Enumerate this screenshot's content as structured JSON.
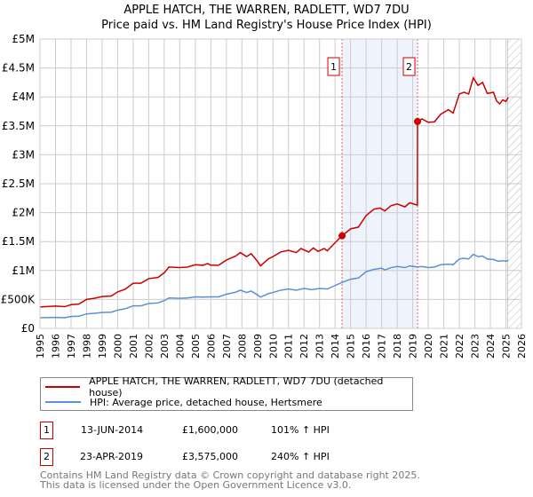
{
  "chart_data": {
    "type": "line",
    "title": "APPLE HATCH, THE WARREN, RADLETT, WD7 7DU",
    "subtitle": "Price paid vs. HM Land Registry's House Price Index (HPI)",
    "xlim": [
      1995,
      2026
    ],
    "ylim": [
      0,
      5000000
    ],
    "x_ticks": [
      "1995",
      "1996",
      "1997",
      "1998",
      "1999",
      "2000",
      "2001",
      "2002",
      "2003",
      "2004",
      "2005",
      "2006",
      "2007",
      "2008",
      "2009",
      "2010",
      "2011",
      "2012",
      "2013",
      "2014",
      "2015",
      "2016",
      "2017",
      "2018",
      "2019",
      "2020",
      "2021",
      "2022",
      "2023",
      "2024",
      "2025",
      "2026"
    ],
    "y_ticks": [
      {
        "v": 0,
        "label": "£0"
      },
      {
        "v": 500000,
        "label": "£500K"
      },
      {
        "v": 1000000,
        "label": "£1M"
      },
      {
        "v": 1500000,
        "label": "£1.5M"
      },
      {
        "v": 2000000,
        "label": "£2M"
      },
      {
        "v": 2500000,
        "label": "£2.5M"
      },
      {
        "v": 3000000,
        "label": "£3M"
      },
      {
        "v": 3500000,
        "label": "£3.5M"
      },
      {
        "v": 4000000,
        "label": "£4M"
      },
      {
        "v": 4500000,
        "label": "£4.5M"
      },
      {
        "v": 5000000,
        "label": "£5M"
      }
    ],
    "grid": true,
    "shaded_between_sales": [
      2014.45,
      2019.31
    ],
    "future_hatch_from": 2025.1,
    "series": [
      {
        "name": "APPLE HATCH, THE WARREN, RADLETT, WD7 7DU (detached house)",
        "color": "#cc0000",
        "points": [
          [
            1995,
            370000
          ],
          [
            1996,
            385000
          ],
          [
            1996.6,
            375000
          ],
          [
            1997,
            410000
          ],
          [
            1997.5,
            420000
          ],
          [
            1998,
            500000
          ],
          [
            1998.5,
            520000
          ],
          [
            1999,
            550000
          ],
          [
            1999.6,
            560000
          ],
          [
            2000,
            630000
          ],
          [
            2000.5,
            680000
          ],
          [
            2001,
            780000
          ],
          [
            2001.5,
            780000
          ],
          [
            2002,
            860000
          ],
          [
            2002.6,
            880000
          ],
          [
            2003,
            960000
          ],
          [
            2003.3,
            1060000
          ],
          [
            2004,
            1050000
          ],
          [
            2004.5,
            1060000
          ],
          [
            2005,
            1100000
          ],
          [
            2005.5,
            1090000
          ],
          [
            2005.8,
            1120000
          ],
          [
            2006,
            1090000
          ],
          [
            2006.5,
            1090000
          ],
          [
            2007,
            1180000
          ],
          [
            2007.6,
            1250000
          ],
          [
            2007.9,
            1310000
          ],
          [
            2008.3,
            1240000
          ],
          [
            2008.6,
            1290000
          ],
          [
            2009,
            1160000
          ],
          [
            2009.2,
            1080000
          ],
          [
            2009.7,
            1200000
          ],
          [
            2010,
            1240000
          ],
          [
            2010.5,
            1320000
          ],
          [
            2011,
            1350000
          ],
          [
            2011.5,
            1310000
          ],
          [
            2011.8,
            1380000
          ],
          [
            2012.3,
            1320000
          ],
          [
            2012.6,
            1390000
          ],
          [
            2012.9,
            1330000
          ],
          [
            2013.3,
            1380000
          ],
          [
            2013.5,
            1340000
          ],
          [
            2014,
            1480000
          ],
          [
            2014.45,
            1600000
          ],
          [
            2015,
            1720000
          ],
          [
            2015.5,
            1750000
          ],
          [
            2016,
            1950000
          ],
          [
            2016.5,
            2060000
          ],
          [
            2016.9,
            2080000
          ],
          [
            2017.2,
            2030000
          ],
          [
            2017.6,
            2120000
          ],
          [
            2018,
            2150000
          ],
          [
            2018.5,
            2100000
          ],
          [
            2018.8,
            2170000
          ],
          [
            2019.3,
            2130000
          ],
          [
            2019.31,
            3575000
          ],
          [
            2019.6,
            3620000
          ],
          [
            2020,
            3560000
          ],
          [
            2020.4,
            3570000
          ],
          [
            2020.8,
            3700000
          ],
          [
            2021.3,
            3780000
          ],
          [
            2021.6,
            3720000
          ],
          [
            2022,
            4050000
          ],
          [
            2022.3,
            4080000
          ],
          [
            2022.6,
            4050000
          ],
          [
            2022.9,
            4330000
          ],
          [
            2023.2,
            4200000
          ],
          [
            2023.5,
            4250000
          ],
          [
            2023.8,
            4060000
          ],
          [
            2024.2,
            4080000
          ],
          [
            2024.4,
            3930000
          ],
          [
            2024.6,
            3880000
          ],
          [
            2024.8,
            3950000
          ],
          [
            2025,
            3920000
          ],
          [
            2025.15,
            3990000
          ]
        ]
      },
      {
        "name": "HPI: Average price, detached house, Hertsmere",
        "color": "#5b8fd6",
        "points": [
          [
            1995,
            185000
          ],
          [
            1996,
            190000
          ],
          [
            1996.6,
            185000
          ],
          [
            1997,
            205000
          ],
          [
            1997.5,
            210000
          ],
          [
            1998,
            250000
          ],
          [
            1998.5,
            260000
          ],
          [
            1999,
            275000
          ],
          [
            1999.6,
            280000
          ],
          [
            2000,
            315000
          ],
          [
            2000.5,
            340000
          ],
          [
            2001,
            390000
          ],
          [
            2001.5,
            390000
          ],
          [
            2002,
            430000
          ],
          [
            2002.6,
            440000
          ],
          [
            2003,
            480000
          ],
          [
            2003.3,
            525000
          ],
          [
            2004,
            520000
          ],
          [
            2004.5,
            525000
          ],
          [
            2005,
            545000
          ],
          [
            2005.5,
            540000
          ],
          [
            2006,
            545000
          ],
          [
            2006.5,
            545000
          ],
          [
            2007,
            590000
          ],
          [
            2007.6,
            625000
          ],
          [
            2007.9,
            660000
          ],
          [
            2008.3,
            620000
          ],
          [
            2008.6,
            645000
          ],
          [
            2009,
            580000
          ],
          [
            2009.2,
            540000
          ],
          [
            2009.7,
            600000
          ],
          [
            2010,
            620000
          ],
          [
            2010.5,
            660000
          ],
          [
            2011,
            680000
          ],
          [
            2011.5,
            660000
          ],
          [
            2012,
            690000
          ],
          [
            2012.5,
            670000
          ],
          [
            2013,
            690000
          ],
          [
            2013.5,
            680000
          ],
          [
            2014,
            740000
          ],
          [
            2014.45,
            795000
          ],
          [
            2015,
            850000
          ],
          [
            2015.5,
            870000
          ],
          [
            2016,
            980000
          ],
          [
            2016.5,
            1020000
          ],
          [
            2017,
            1040000
          ],
          [
            2017.2,
            1010000
          ],
          [
            2017.6,
            1050000
          ],
          [
            2018,
            1070000
          ],
          [
            2018.5,
            1050000
          ],
          [
            2018.8,
            1080000
          ],
          [
            2019.3,
            1060000
          ],
          [
            2019.6,
            1070000
          ],
          [
            2020,
            1050000
          ],
          [
            2020.4,
            1060000
          ],
          [
            2020.8,
            1100000
          ],
          [
            2021.3,
            1110000
          ],
          [
            2021.6,
            1100000
          ],
          [
            2022,
            1200000
          ],
          [
            2022.3,
            1210000
          ],
          [
            2022.6,
            1200000
          ],
          [
            2022.9,
            1280000
          ],
          [
            2023.2,
            1240000
          ],
          [
            2023.5,
            1250000
          ],
          [
            2023.8,
            1200000
          ],
          [
            2024.2,
            1190000
          ],
          [
            2024.5,
            1160000
          ],
          [
            2024.8,
            1170000
          ],
          [
            2025,
            1160000
          ],
          [
            2025.15,
            1175000
          ]
        ]
      }
    ],
    "sales": [
      {
        "id": "1",
        "x": 2014.45,
        "price": 1600000,
        "date": "13-JUN-2014",
        "price_label": "£1,600,000",
        "hpi_label": "101% ↑ HPI"
      },
      {
        "id": "2",
        "x": 2019.31,
        "price": 3575000,
        "date": "23-APR-2019",
        "price_label": "£3,575,000",
        "hpi_label": "240% ↑ HPI"
      }
    ]
  },
  "legend": {
    "property": "APPLE HATCH, THE WARREN, RADLETT, WD7 7DU (detached house)",
    "hpi": "HPI: Average price, detached house, Hertsmere"
  },
  "footer": {
    "line1": "Contains HM Land Registry data © Crown copyright and database right 2025.",
    "line2": "This data is licensed under the Open Government Licence v3.0."
  }
}
